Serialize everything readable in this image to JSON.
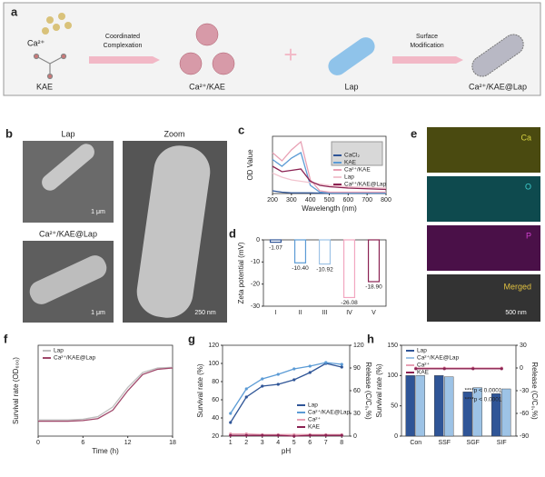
{
  "scheme": {
    "label": "a",
    "items": [
      "Ca²⁺",
      "KAE",
      "Ca²⁺/KAE",
      "Lap",
      "Ca²⁺/KAE@Lap"
    ],
    "arrows": [
      [
        "Coordinated",
        "Complexation"
      ],
      [
        "Surface",
        "Modification"
      ]
    ]
  },
  "micrographs": {
    "label": "b",
    "lap": "Lap",
    "zoom": "Zoom",
    "lap_scale": "1 μm",
    "coated": "Ca²⁺/KAE@Lap",
    "coated_scale": "1 μm",
    "zoom_scale": "250 nm"
  },
  "eds": {
    "label": "e",
    "maps": [
      "Ca",
      "O",
      "P",
      "Merged"
    ],
    "scale": "500 nm"
  },
  "chart_data": [
    {
      "panel": "c",
      "type": "line",
      "xlabel": "Wavelength (nm)",
      "ylabel": "OD Value",
      "x": [
        200,
        250,
        300,
        350,
        400,
        450,
        500,
        600,
        700,
        800
      ],
      "xlim": [
        200,
        800
      ],
      "xticks": [
        200,
        300,
        400,
        500,
        600,
        700,
        800
      ],
      "ylim": [
        0,
        4.2
      ],
      "legend": "lower right",
      "series": [
        {
          "name": "CaCl₂",
          "color": "#2f5597",
          "values": [
            0.2,
            0.1,
            0.05,
            0.05,
            0.05,
            0.03,
            0.02,
            0.02,
            0.02,
            0.02
          ]
        },
        {
          "name": "KAE",
          "color": "#5b9bd5",
          "values": [
            2.5,
            2.0,
            2.6,
            3.0,
            0.6,
            0.1,
            0.05,
            0.05,
            0.05,
            0.05
          ]
        },
        {
          "name": "Ca²⁺/KAE",
          "color": "#e8a0b4",
          "values": [
            3.0,
            2.4,
            3.2,
            3.8,
            1.0,
            0.2,
            0.1,
            0.1,
            0.1,
            0.1
          ]
        },
        {
          "name": "Lap",
          "color": "#f2c4cf",
          "values": [
            1.5,
            1.2,
            1.0,
            0.9,
            0.8,
            0.7,
            0.6,
            0.5,
            0.45,
            0.4
          ]
        },
        {
          "name": "Ca²⁺/KAE@Lap",
          "color": "#8b2252",
          "values": [
            2.0,
            1.6,
            1.7,
            1.8,
            0.9,
            0.6,
            0.5,
            0.4,
            0.35,
            0.3
          ]
        }
      ]
    },
    {
      "panel": "d",
      "type": "bar",
      "ylabel": "Zeta potential (mV)",
      "categories": [
        "I",
        "II",
        "III",
        "IV",
        "V"
      ],
      "values": [
        -1.07,
        -10.4,
        -10.92,
        -26.08,
        -18.9
      ],
      "value_labels": [
        "-1.07",
        "-10.40",
        "-10.92",
        "-26.08",
        "-18.90"
      ],
      "colors": [
        "#2f5597",
        "#5b9bd5",
        "#9dc3e6",
        "#f2a6c0",
        "#8b2252"
      ],
      "ylim": [
        -30,
        0
      ],
      "yticks": [
        -30,
        -20,
        -10,
        0
      ]
    },
    {
      "panel": "f",
      "type": "line",
      "xlabel": "Time (h)",
      "ylabel": "Survival rate (OD₆₀₀)",
      "x": [
        0,
        2,
        4,
        6,
        8,
        10,
        12,
        14,
        16,
        18
      ],
      "xlim": [
        0,
        18
      ],
      "xticks": [
        0,
        6,
        12,
        18
      ],
      "ylim": [
        0,
        1.4
      ],
      "legend": "upper left",
      "series": [
        {
          "name": "Lap",
          "color": "#bfbfbf",
          "values": [
            0.25,
            0.25,
            0.25,
            0.26,
            0.3,
            0.45,
            0.75,
            0.98,
            1.05,
            1.06
          ]
        },
        {
          "name": "Ca²⁺/KAE@Lap",
          "color": "#a0486a",
          "values": [
            0.23,
            0.23,
            0.23,
            0.24,
            0.27,
            0.4,
            0.7,
            0.95,
            1.03,
            1.05
          ]
        }
      ]
    },
    {
      "panel": "g",
      "type": "line",
      "markers": true,
      "xlabel": "pH",
      "ylabel": "Survival rate (%)",
      "y2label": "Release (C/C₀,%)",
      "x": [
        1,
        2,
        3,
        4,
        5,
        6,
        7,
        8
      ],
      "xlim": [
        0.5,
        8.5
      ],
      "xticks": [
        1,
        2,
        3,
        4,
        5,
        6,
        7,
        8
      ],
      "ylim": [
        20,
        120
      ],
      "yticks": [
        20,
        40,
        60,
        80,
        100,
        120
      ],
      "y2lim": [
        0,
        120
      ],
      "y2ticks": [
        0,
        30,
        60,
        90,
        120
      ],
      "legend": "lower right",
      "series": [
        {
          "name": "Lap",
          "color": "#2f5597",
          "values": [
            35,
            63,
            75,
            77,
            82,
            90,
            100,
            96
          ]
        },
        {
          "name": "Ca²⁺/KAE@Lap",
          "color": "#5b9bd5",
          "values": [
            45,
            72,
            83,
            88,
            94,
            97,
            101,
            99
          ]
        },
        {
          "name": "Ca²⁺",
          "color": "#e8a0b4",
          "axis": "y2",
          "values": [
            3,
            3,
            2,
            2,
            2,
            2,
            2,
            2
          ]
        },
        {
          "name": "KAE",
          "color": "#8b2252",
          "axis": "y2",
          "values": [
            1,
            1,
            1,
            1,
            0,
            1,
            1,
            1
          ]
        }
      ]
    },
    {
      "panel": "h",
      "type": "bar",
      "ylabel": "Survival rate (%)",
      "y2label": "Release (C/C₀,%)",
      "categories": [
        "Con",
        "SSF",
        "SGF",
        "SIF"
      ],
      "ylim": [
        0,
        150
      ],
      "yticks": [
        0,
        50,
        100,
        150
      ],
      "y2lim": [
        -90,
        30
      ],
      "y2ticks": [
        -90,
        -60,
        -30,
        0,
        30
      ],
      "legend": "upper left",
      "annotations": [
        "****p < 0.0001",
        "****p < 0.0001"
      ],
      "series": [
        {
          "name": "Lap",
          "color": "#2f5597",
          "values": [
            100,
            100,
            73,
            70
          ]
        },
        {
          "name": "Ca²⁺/KAE@Lap",
          "color": "#9dc3e6",
          "values": [
            100,
            98,
            80,
            78
          ]
        },
        {
          "name": "Ca²⁺",
          "color": "#e8a0b4",
          "axis": "y2",
          "values": [
            0,
            0,
            0,
            0
          ]
        },
        {
          "name": "KAE",
          "color": "#8b2252",
          "axis": "y2",
          "values": [
            -1,
            -1,
            -1,
            -1
          ]
        }
      ]
    }
  ]
}
